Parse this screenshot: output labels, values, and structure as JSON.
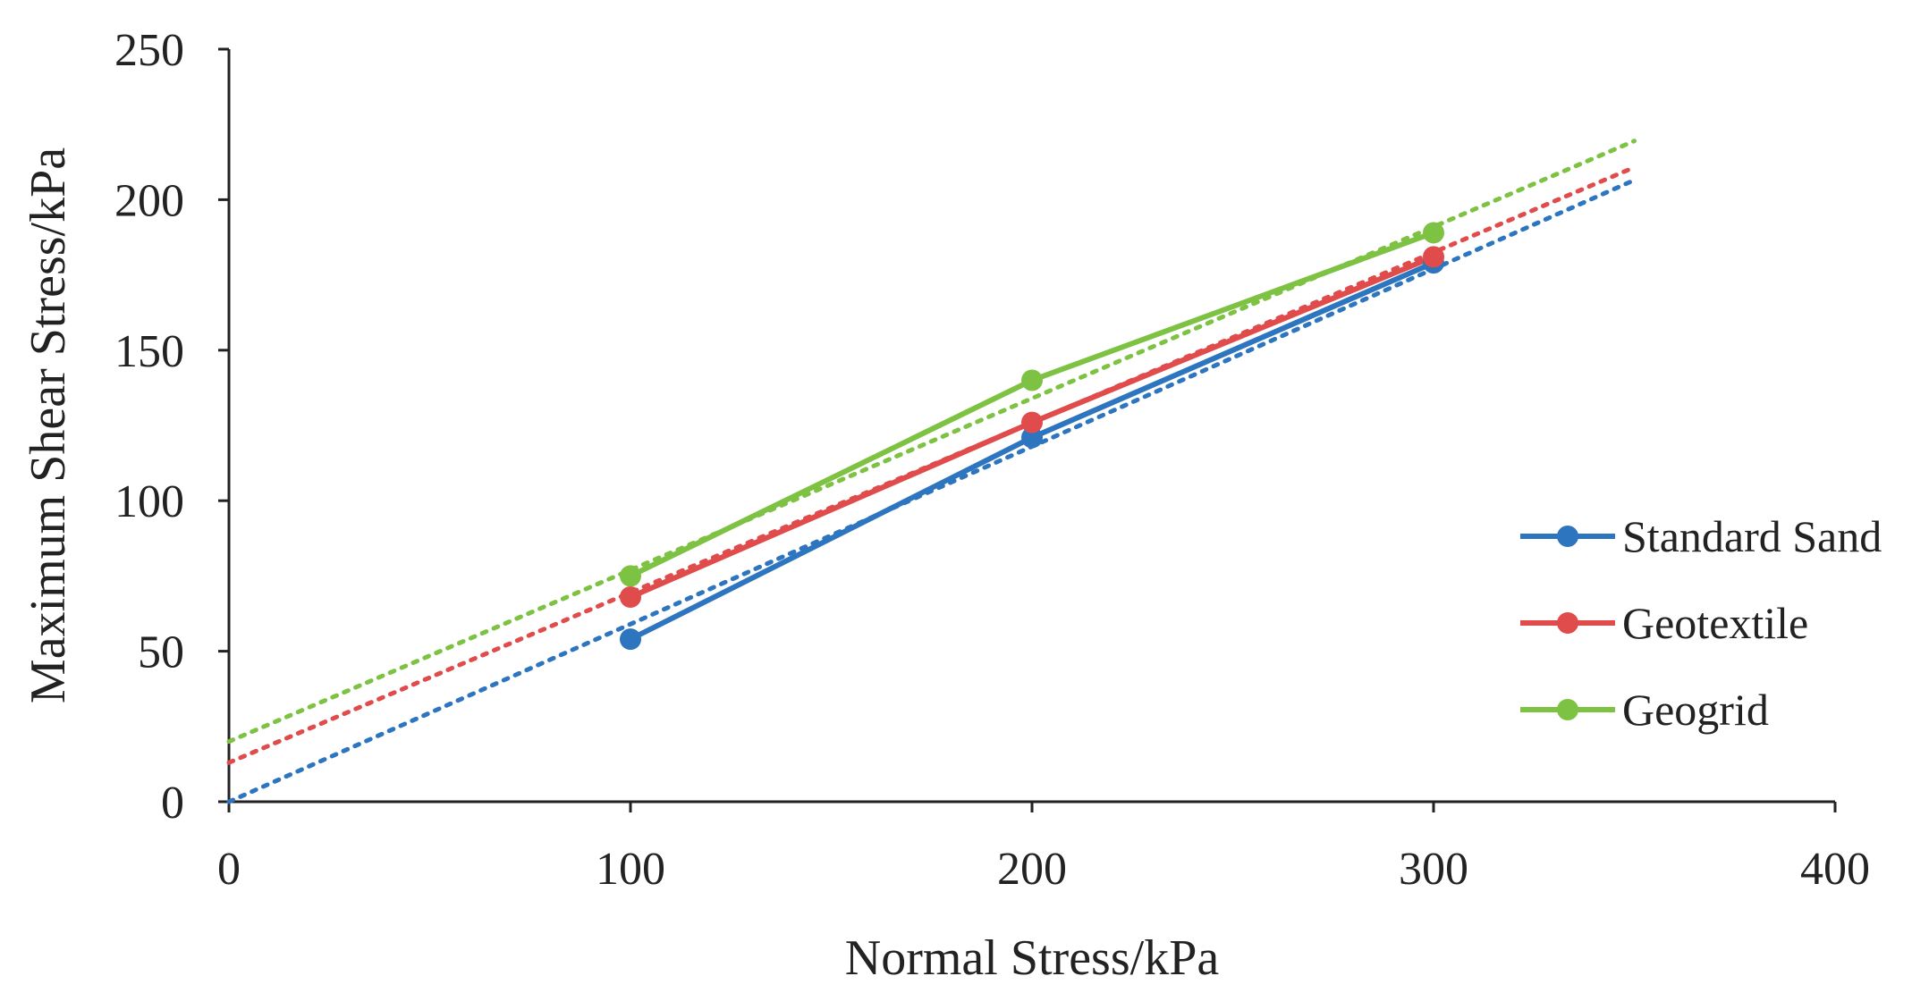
{
  "chart_data": {
    "type": "line",
    "title": "",
    "xlabel": "Normal Stress/kPa",
    "ylabel": "Maximum Shear Stress/kPa",
    "xlim": [
      0,
      400
    ],
    "ylim": [
      0,
      250
    ],
    "x_ticks": [
      "0",
      "100",
      "200",
      "300",
      "400"
    ],
    "y_ticks": [
      "0",
      "50",
      "100",
      "150",
      "200",
      "250"
    ],
    "grid": false,
    "legend_position": "right",
    "x": [
      100,
      200,
      300
    ],
    "series": [
      {
        "name": "Standard Sand",
        "color": "#2e75c0",
        "values": [
          54,
          121,
          179
        ],
        "trendline": {
          "slope": 0.59,
          "intercept": 0,
          "x_range": [
            0,
            350
          ]
        }
      },
      {
        "name": "Geotextile",
        "color": "#e04b4b",
        "values": [
          68,
          126,
          181
        ],
        "trendline": {
          "slope": 0.565,
          "intercept": 13,
          "x_range": [
            0,
            350
          ]
        }
      },
      {
        "name": "Geogrid",
        "color": "#7dc242",
        "values": [
          75,
          140,
          189
        ],
        "trendline": {
          "slope": 0.57,
          "intercept": 20,
          "x_range": [
            0,
            350
          ]
        }
      }
    ]
  }
}
